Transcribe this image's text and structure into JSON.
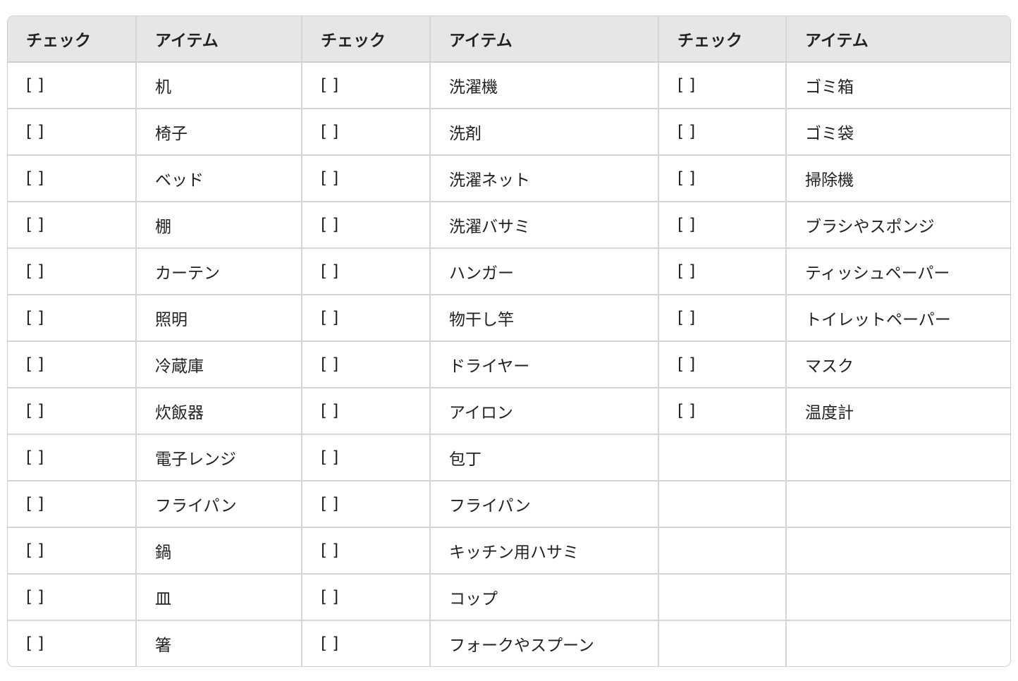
{
  "headers": [
    "チェック",
    "アイテム",
    "チェック",
    "アイテム",
    "チェック",
    "アイテム"
  ],
  "rows": [
    [
      "[ ]",
      "机",
      "[ ]",
      "洗濯機",
      "[ ]",
      "ゴミ箱"
    ],
    [
      "[ ]",
      "椅子",
      "[ ]",
      "洗剤",
      "[ ]",
      "ゴミ袋"
    ],
    [
      "[ ]",
      "ベッド",
      "[ ]",
      "洗濯ネット",
      "[ ]",
      "掃除機"
    ],
    [
      "[ ]",
      "棚",
      "[ ]",
      "洗濯バサミ",
      "[ ]",
      "ブラシやスポンジ"
    ],
    [
      "[ ]",
      "カーテン",
      "[ ]",
      "ハンガー",
      "[ ]",
      "ティッシュペーパー"
    ],
    [
      "[ ]",
      "照明",
      "[ ]",
      "物干し竿",
      "[ ]",
      "トイレットペーパー"
    ],
    [
      "[ ]",
      "冷蔵庫",
      "[ ]",
      "ドライヤー",
      "[ ]",
      "マスク"
    ],
    [
      "[ ]",
      "炊飯器",
      "[ ]",
      "アイロン",
      "[ ]",
      "温度計"
    ],
    [
      "[ ]",
      "電子レンジ",
      "[ ]",
      "包丁",
      "",
      ""
    ],
    [
      "[ ]",
      "フライパン",
      "[ ]",
      "フライパン",
      "",
      ""
    ],
    [
      "[ ]",
      "鍋",
      "[ ]",
      "キッチン用ハサミ",
      "",
      ""
    ],
    [
      "[ ]",
      "皿",
      "[ ]",
      "コップ",
      "",
      ""
    ],
    [
      "[ ]",
      "箸",
      "[ ]",
      "フォークやスプーン",
      "",
      ""
    ]
  ]
}
